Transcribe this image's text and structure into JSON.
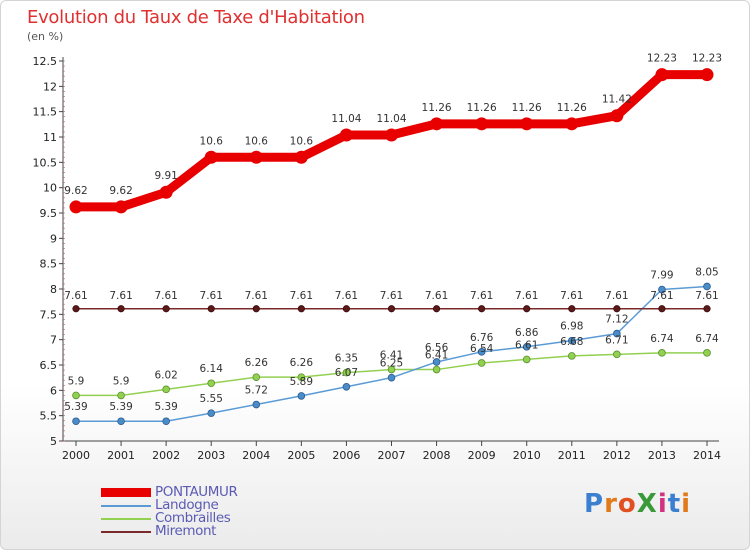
{
  "header": {
    "title": "Evolution du Taux de Taxe d'Habitation",
    "unit": "(en %)"
  },
  "brand": {
    "text": "ProXiti",
    "colors": [
      "#3a7fd0",
      "#e07a1a",
      "#e05020",
      "#3a9a3a",
      "#d43080",
      "#3a7fd0",
      "#e07a1a"
    ]
  },
  "chart_data": {
    "type": "line",
    "x": [
      2000,
      2001,
      2002,
      2003,
      2004,
      2005,
      2006,
      2007,
      2008,
      2009,
      2010,
      2011,
      2012,
      2013,
      2014
    ],
    "ylim": [
      5,
      12.5
    ],
    "yticks": [
      "5",
      "5.5",
      "6",
      "6.5",
      "7",
      "7.5",
      "8",
      "8.5",
      "9",
      "9.5",
      "10",
      "10.5",
      "11",
      "11.5",
      "12",
      "12.5"
    ],
    "grid": false,
    "legend_position": "bottom-left",
    "series": [
      {
        "name": "PONTAUMUR",
        "color": "#e80000",
        "values": [
          9.62,
          9.62,
          9.91,
          10.6,
          10.6,
          10.6,
          11.04,
          11.04,
          11.26,
          11.26,
          11.26,
          11.26,
          11.42,
          12.23,
          12.23
        ],
        "labels": [
          "9.62",
          "9.62",
          "9.91",
          "10.6",
          "10.6",
          "10.6",
          "11.04",
          "11.04",
          "11.26",
          "11.26",
          "11.26",
          "11.26",
          "11.42",
          "12.23",
          "12.23"
        ]
      },
      {
        "name": "Landogne",
        "color": "#5b9bd5",
        "values": [
          5.39,
          5.39,
          5.39,
          5.55,
          5.72,
          5.89,
          6.07,
          6.25,
          6.56,
          6.76,
          6.86,
          6.98,
          7.12,
          7.99,
          8.05
        ],
        "labels": [
          "5.39",
          "5.39",
          "5.39",
          "5.55",
          "5.72",
          "5.89",
          "6.07",
          "6.25",
          "6.56",
          "6.76",
          "6.86",
          "6.98",
          "7.12",
          "7.99",
          "8.05"
        ]
      },
      {
        "name": "Combrailles",
        "color": "#92d050",
        "values": [
          5.9,
          5.9,
          6.02,
          6.14,
          6.26,
          6.26,
          6.35,
          6.41,
          6.41,
          6.54,
          6.61,
          6.68,
          6.71,
          6.74,
          6.74
        ],
        "labels": [
          "5.9",
          "5.9",
          "6.02",
          "6.14",
          "6.26",
          "6.26",
          "6.35",
          "6.41",
          "6.41",
          "6.54",
          "6.61",
          "6.68",
          "6.71",
          "6.74",
          "6.74"
        ]
      },
      {
        "name": "Miremont",
        "color": "#7a2a2a",
        "values": [
          7.61,
          7.61,
          7.61,
          7.61,
          7.61,
          7.61,
          7.61,
          7.61,
          7.61,
          7.61,
          7.61,
          7.61,
          7.61,
          7.61,
          7.61
        ],
        "labels": [
          "7.61",
          "7.61",
          "7.61",
          "7.61",
          "7.61",
          "7.61",
          "7.61",
          "7.61",
          "7.61",
          "7.61",
          "7.61",
          "7.61",
          "7.61",
          "7.61",
          "7.61"
        ]
      }
    ]
  }
}
